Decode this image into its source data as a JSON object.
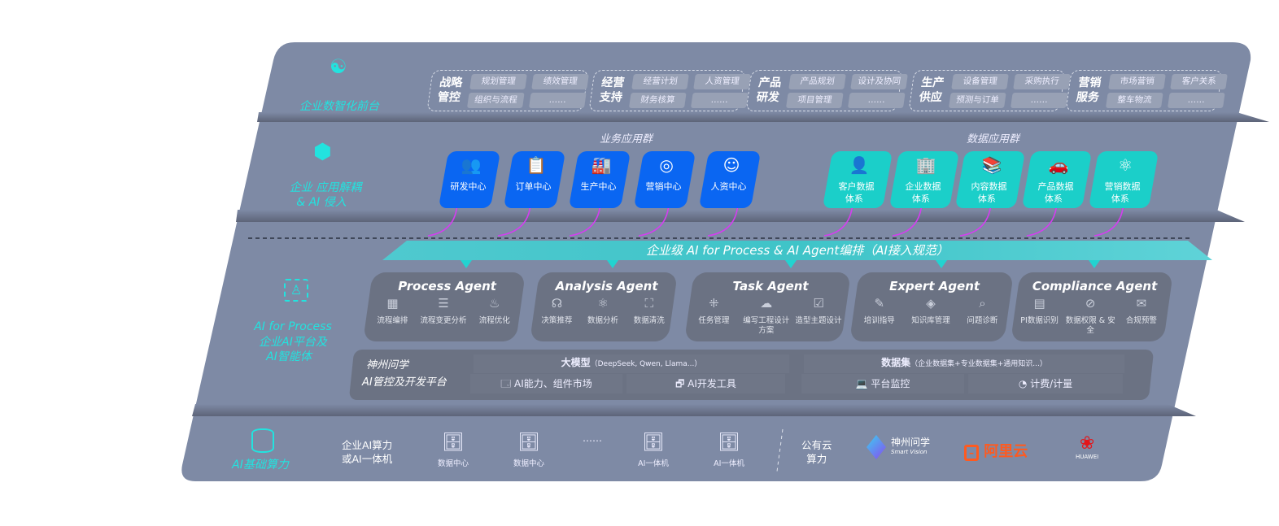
{
  "colors": {
    "panel": "#7e8aa5",
    "accent": "#22e3df",
    "business": "#0a66f2",
    "data": "#1bcfc9",
    "agent": "#6b7283",
    "arrow": "#d43ef0"
  },
  "layers": {
    "front": {
      "label": "企业数智化前台",
      "icon": "brain-icon"
    },
    "apps": {
      "label1": "企业 应用解耦",
      "label2": "& AI 侵入",
      "icon": "molecule-icon"
    },
    "ai": {
      "label1": "AI for Process",
      "label2": "企业AI平台及",
      "label3": "AI智能体",
      "icon": "user-focus-icon"
    },
    "infra": {
      "label": "AI基础算力",
      "icon": "database-icon"
    }
  },
  "categories": [
    {
      "title": "战略管控",
      "items": [
        "规划管理",
        "绩效管理",
        "组织与流程",
        "……"
      ]
    },
    {
      "title": "经营支持",
      "items": [
        "经营计划",
        "人资管理",
        "财务核算",
        "……"
      ]
    },
    {
      "title": "产品研发",
      "items": [
        "产品规划",
        "设计及协同",
        "项目管理",
        "……"
      ]
    },
    {
      "title": "生产供应",
      "items": [
        "设备管理",
        "采购执行",
        "预测与订单",
        "……"
      ]
    },
    {
      "title": "营销服务",
      "items": [
        "市场营销",
        "客户关系",
        "整车物流",
        "……"
      ]
    }
  ],
  "business_group": {
    "title": "业务应用群",
    "items": [
      {
        "label": "研发中心",
        "icon": "team-icon"
      },
      {
        "label": "订单中心",
        "icon": "clipboard-icon"
      },
      {
        "label": "生产中心",
        "icon": "factory-icon"
      },
      {
        "label": "营销中心",
        "icon": "target-icon"
      },
      {
        "label": "人资中心",
        "icon": "person-icon"
      }
    ]
  },
  "data_group": {
    "title": "数据应用群",
    "items": [
      {
        "l1": "客户数据",
        "l2": "体系",
        "icon": "user-icon"
      },
      {
        "l1": "企业数据",
        "l2": "体系",
        "icon": "building-icon"
      },
      {
        "l1": "内容数据",
        "l2": "体系",
        "icon": "books-icon"
      },
      {
        "l1": "产品数据",
        "l2": "体系",
        "icon": "car-icon"
      },
      {
        "l1": "营销数据",
        "l2": "体系",
        "icon": "atom-icon"
      }
    ]
  },
  "banner": "企业级 AI for Process & AI Agent编排（AI接入规范）",
  "agents": [
    {
      "name": "Process Agent",
      "items": [
        {
          "label": "流程编排",
          "icon": "chart-window-icon"
        },
        {
          "label": "流程变更分析",
          "icon": "list-icon"
        },
        {
          "label": "流程优化",
          "icon": "optimize-icon"
        }
      ]
    },
    {
      "name": "Analysis Agent",
      "items": [
        {
          "label": "决策推荐",
          "icon": "head-icon"
        },
        {
          "label": "数据分析",
          "icon": "atom-icon"
        },
        {
          "label": "数据清洗",
          "icon": "clean-icon"
        }
      ]
    },
    {
      "name": "Task Agent",
      "items": [
        {
          "label": "任务管理",
          "icon": "network-icon"
        },
        {
          "label": "编写工程设计方案",
          "icon": "cloud-icon"
        },
        {
          "label": "造型主题设计",
          "icon": "checklist-icon"
        }
      ]
    },
    {
      "name": "Expert Agent",
      "items": [
        {
          "label": "培训指导",
          "icon": "training-icon"
        },
        {
          "label": "知识库管理",
          "icon": "layers-icon"
        },
        {
          "label": "问题诊断",
          "icon": "diagnose-icon"
        }
      ]
    },
    {
      "name": "Compliance Agent",
      "items": [
        {
          "label": "PI数据识别",
          "icon": "id-card-icon"
        },
        {
          "label": "数据权限 & 安全",
          "icon": "link-icon"
        },
        {
          "label": "合规预警",
          "icon": "mail-alert-icon"
        }
      ]
    }
  ],
  "platform": {
    "title1": "神州问学",
    "title2": "AI管控及开发平台",
    "model": "大模型",
    "model_note": "（DeepSeek, Qwen, Llama...）",
    "dataset": "数据集",
    "dataset_note": "（企业数据集+专业数据集+通用知识...）",
    "tools": [
      {
        "label": "AI能力、组件市场",
        "icon": "market-icon"
      },
      {
        "label": "AI开发工具",
        "icon": "dev-tool-icon"
      },
      {
        "label": "平台监控",
        "icon": "monitor-icon"
      },
      {
        "label": "计费/计量",
        "icon": "gauge-icon"
      }
    ]
  },
  "infra": {
    "private1": "企业AI算力",
    "private2": "或AI一体机",
    "servers": [
      {
        "label": "数据中心",
        "icon": "server-icon"
      },
      {
        "label": "数据中心",
        "icon": "server-icon"
      },
      {
        "label": "",
        "icon": "ellipsis",
        "text": "……"
      },
      {
        "label": "AI一体机",
        "icon": "server-icon"
      },
      {
        "label": "AI一体机",
        "icon": "server-icon"
      }
    ],
    "public1": "公有云",
    "public2": "算力",
    "vendors": {
      "shenzhou": "神州问学",
      "shenzhou_en": "Smart Vision",
      "aliyun": "阿里云",
      "huawei": "HUAWEI"
    }
  }
}
